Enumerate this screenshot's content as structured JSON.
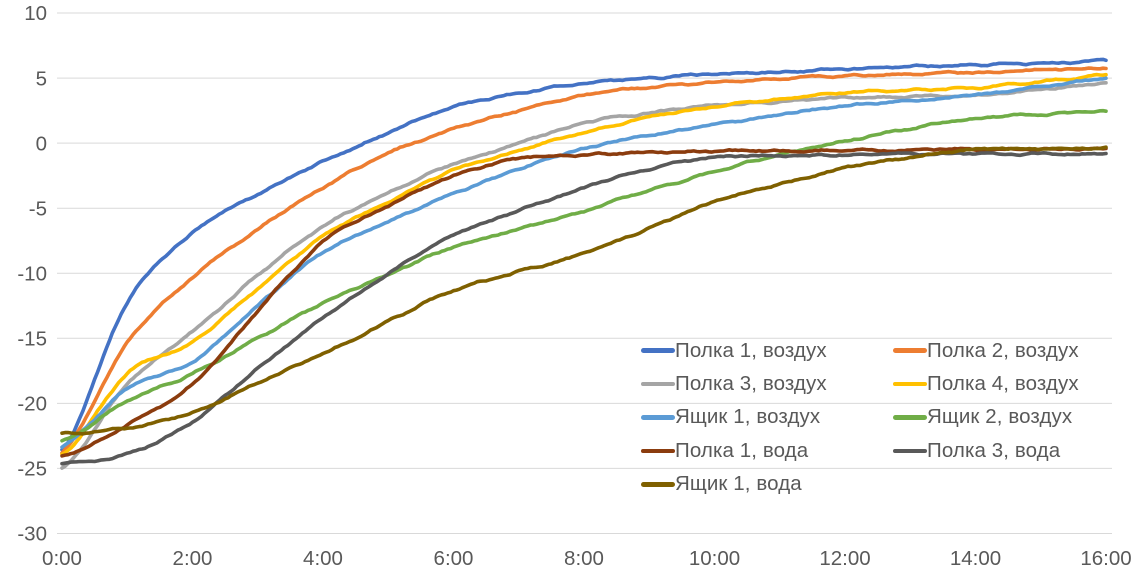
{
  "chart_data": {
    "type": "line",
    "title": "",
    "xlabel": "",
    "ylabel": "",
    "x_hours": [
      0,
      1,
      2,
      3,
      4,
      5,
      6,
      7,
      8,
      9,
      10,
      11,
      12,
      13,
      14,
      15,
      16
    ],
    "x_tick_hours": [
      0,
      2,
      4,
      6,
      8,
      10,
      12,
      14,
      16
    ],
    "x_tick_labels": [
      "0:00",
      "2:00",
      "4:00",
      "6:00",
      "8:00",
      "10:00",
      "12:00",
      "14:00",
      "16:00"
    ],
    "y_ticks": [
      10,
      5,
      0,
      -5,
      -10,
      -15,
      -20,
      -25,
      -30
    ],
    "y_tick_labels": [
      "10",
      "5",
      "0",
      "-5",
      "-10",
      "-15",
      "-20",
      "-25",
      "-30"
    ],
    "ylim": [
      -30,
      10
    ],
    "xlim_hours": [
      0,
      16
    ],
    "grid": "horizontal",
    "legend_position": "inside-bottom-right, 2 columns",
    "series": [
      {
        "name": "Полка 1, воздух",
        "color": "#4472C4",
        "values": [
          -23.6,
          -12.2,
          -6.9,
          -3.9,
          -1.4,
          0.8,
          2.8,
          3.8,
          4.6,
          5.0,
          5.3,
          5.5,
          5.7,
          5.9,
          6.0,
          6.15,
          6.3
        ]
      },
      {
        "name": "Полка 2, воздух",
        "color": "#ED7D31",
        "values": [
          -23.8,
          -15.3,
          -10.3,
          -6.6,
          -3.4,
          -0.8,
          1.1,
          2.5,
          3.7,
          4.3,
          4.7,
          5.0,
          5.2,
          5.3,
          5.45,
          5.6,
          5.8
        ]
      },
      {
        "name": "Полка 3, воздух",
        "color": "#A5A5A5",
        "values": [
          -25.0,
          -18.5,
          -14.5,
          -10.2,
          -6.4,
          -3.8,
          -1.6,
          0.0,
          1.5,
          2.3,
          2.9,
          3.2,
          3.5,
          3.6,
          3.7,
          4.1,
          4.6
        ]
      },
      {
        "name": "Полка 4, воздух",
        "color": "#FFC000",
        "values": [
          -23.9,
          -17.7,
          -15.3,
          -11.2,
          -7.2,
          -4.5,
          -2.1,
          -0.6,
          0.9,
          2.0,
          2.8,
          3.4,
          3.9,
          4.1,
          4.3,
          4.7,
          5.2
        ]
      },
      {
        "name": "Ящик 1, воздух",
        "color": "#5B9BD5",
        "values": [
          -23.3,
          -18.9,
          -16.8,
          -12.5,
          -8.4,
          -6.0,
          -3.9,
          -2.0,
          -0.4,
          0.6,
          1.4,
          2.2,
          2.9,
          3.3,
          3.7,
          4.3,
          5.0
        ]
      },
      {
        "name": "Ящик 2, воздух",
        "color": "#70AD47",
        "values": [
          -22.9,
          -19.8,
          -17.7,
          -15.0,
          -12.3,
          -10.1,
          -8.0,
          -6.6,
          -5.2,
          -3.6,
          -2.2,
          -0.9,
          0.2,
          1.1,
          1.9,
          2.2,
          2.4
        ]
      },
      {
        "name": "Полка 1, вода",
        "color": "#8B3C0E",
        "values": [
          -24.0,
          -21.6,
          -18.5,
          -12.9,
          -7.6,
          -4.8,
          -2.5,
          -1.2,
          -0.9,
          -0.7,
          -0.6,
          -0.6,
          -0.55,
          -0.5,
          -0.45,
          -0.45,
          -0.4
        ]
      },
      {
        "name": "Полка 3, вода",
        "color": "#595959",
        "values": [
          -24.6,
          -23.9,
          -21.4,
          -17.3,
          -13.4,
          -10.0,
          -7.1,
          -5.2,
          -3.4,
          -2.0,
          -1.1,
          -0.95,
          -0.9,
          -0.88,
          -0.85,
          -0.82,
          -0.8
        ]
      },
      {
        "name": "Ящик 1, вода",
        "color": "#7F6000",
        "values": [
          -22.3,
          -21.9,
          -20.7,
          -18.4,
          -16.2,
          -13.7,
          -11.3,
          -9.9,
          -8.5,
          -6.5,
          -4.5,
          -3.2,
          -1.9,
          -1.1,
          -0.5,
          -0.42,
          -0.35
        ]
      }
    ]
  },
  "style": {
    "gridline_color": "#D9D9D9",
    "axis_text_color": "#595959",
    "background_color": "#FFFFFF",
    "line_width": 3.6
  }
}
